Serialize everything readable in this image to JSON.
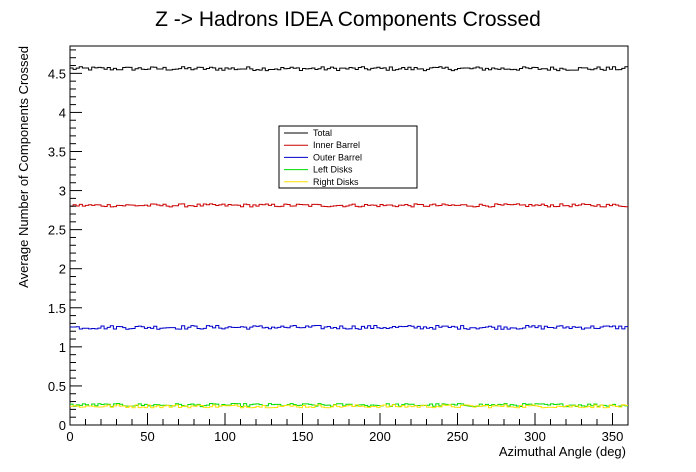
{
  "chart_data": {
    "type": "line",
    "title": "Z -> Hadrons IDEA Components Crossed",
    "xlabel": "Azimuthal Angle (deg)",
    "ylabel": "Average Number of Components Crossed",
    "xlim": [
      0,
      360
    ],
    "ylim": [
      0,
      4.85
    ],
    "x_ticks": [
      0,
      50,
      100,
      150,
      200,
      250,
      300,
      350
    ],
    "y_ticks": [
      0,
      0.5,
      1,
      1.5,
      2,
      2.5,
      3,
      3.5,
      4,
      4.5
    ],
    "grid": false,
    "legend_position": "center",
    "bins": 180,
    "bin_width_deg": 2,
    "series": [
      {
        "name": "Total",
        "color": "#000000",
        "mean": 4.56,
        "noise": 0.025
      },
      {
        "name": "Inner Barrel",
        "color": "#cc0000",
        "mean": 2.81,
        "noise": 0.02
      },
      {
        "name": "Outer Barrel",
        "color": "#0000cc",
        "mean": 1.25,
        "noise": 0.025
      },
      {
        "name": "Left Disks",
        "color": "#00dd00",
        "mean": 0.255,
        "noise": 0.02
      },
      {
        "name": "Right Disks",
        "color": "#ffe000",
        "mean": 0.24,
        "noise": 0.02
      }
    ]
  }
}
